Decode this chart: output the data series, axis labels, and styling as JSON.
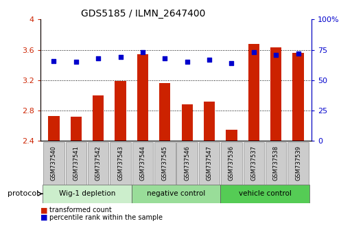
{
  "title": "GDS5185 / ILMN_2647400",
  "samples": [
    "GSM737540",
    "GSM737541",
    "GSM737542",
    "GSM737543",
    "GSM737544",
    "GSM737545",
    "GSM737546",
    "GSM737547",
    "GSM737536",
    "GSM737537",
    "GSM737538",
    "GSM737539"
  ],
  "bar_values": [
    2.73,
    2.72,
    3.0,
    3.19,
    3.54,
    3.16,
    2.88,
    2.92,
    2.55,
    3.68,
    3.63,
    3.56
  ],
  "dot_values": [
    66,
    65,
    68,
    69,
    73,
    68,
    65,
    67,
    64,
    73,
    71,
    72
  ],
  "groups": [
    {
      "label": "Wig-1 depletion",
      "start": 0,
      "end": 4,
      "color": "#cceecc"
    },
    {
      "label": "negative control",
      "start": 4,
      "end": 8,
      "color": "#99dd99"
    },
    {
      "label": "vehicle control",
      "start": 8,
      "end": 12,
      "color": "#55cc55"
    }
  ],
  "bar_color": "#cc2200",
  "dot_color": "#0000cc",
  "bar_bottom": 2.4,
  "ylim_left": [
    2.4,
    4.0
  ],
  "ylim_right": [
    0,
    100
  ],
  "yticks_left": [
    2.4,
    2.8,
    3.2,
    3.6,
    4.0
  ],
  "yticks_right": [
    0,
    25,
    50,
    75,
    100
  ],
  "yticklabels_right": [
    "0",
    "25",
    "50",
    "75",
    "100%"
  ],
  "ytick_labels_left": [
    "2.4",
    "2.8",
    "3.2",
    "3.6",
    "4"
  ],
  "grid_values": [
    2.8,
    3.2,
    3.6
  ],
  "legend_items": [
    {
      "label": "transformed count",
      "color": "#cc2200"
    },
    {
      "label": "percentile rank within the sample",
      "color": "#0000cc"
    }
  ],
  "protocol_label": "protocol",
  "tick_label_bg": "#cccccc",
  "bar_width": 0.5,
  "figsize": [
    5.13,
    3.54
  ],
  "dpi": 100
}
